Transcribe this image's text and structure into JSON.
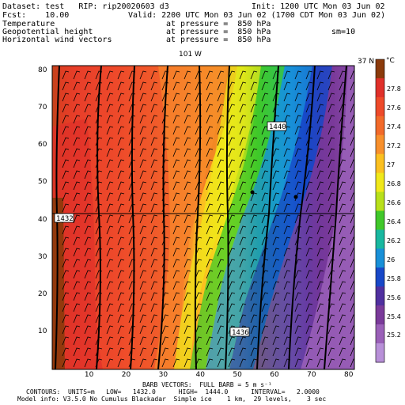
{
  "header": {
    "dataset": "Dataset: test   RIP: rip20020603 d3",
    "init": "Init: 1200 UTC Mon 03 Jun 02",
    "fcst": "Fcst:    10.00",
    "valid": "Valid: 2200 UTC Mon 03 Jun 02 (1700 CDT Mon 03 Jun 02)",
    "field1_name": "Temperature",
    "field1_level": "at pressure =  850 hPa",
    "field2_name": "Geopotential height",
    "field2_level": "at pressure =  850 hPa",
    "field3_name": "Horizontal wind vectors",
    "field3_level": "at pressure =  850 hPa",
    "sm": "sm=10"
  },
  "map": {
    "lon_label": "101 W",
    "lat_label": "37 N",
    "x_ticks": [
      "10",
      "20",
      "30",
      "40",
      "50",
      "60",
      "70",
      "80"
    ],
    "y_ticks": [
      "10",
      "20",
      "30",
      "40",
      "50",
      "60",
      "70",
      "80"
    ],
    "contour_labels": [
      "1440",
      "1432",
      "1436"
    ],
    "colorbar": {
      "unit": "°C",
      "levels": [
        "27.8",
        "27.6",
        "27.4",
        "27.2",
        "27",
        "26.8",
        "26.6",
        "26.4",
        "26.2",
        "26",
        "25.8",
        "25.6",
        "25.4",
        "25.2"
      ],
      "colors": [
        "#8b3a0b",
        "#e0302a",
        "#ee4a2a",
        "#f26a2a",
        "#f8902c",
        "#fbc020",
        "#f0e81a",
        "#b8e01a",
        "#40c82a",
        "#18b8a0",
        "#1890d8",
        "#1848c8",
        "#5030a0",
        "#7a3a9a",
        "#9a60b8",
        "#b890d8"
      ]
    }
  },
  "footer": {
    "barb": "BARB VECTORS:  FULL BARB = 5 m s⁻¹",
    "contours": "CONTOURS:  UNITS=m   LOW=   1432.0      HIGH=  1444.0      INTERVAL=   2.0000",
    "model": "Model info: V3.5.0 No Cumulus Blackadar  Simple ice    1 km,  29 levels,    3 sec"
  }
}
